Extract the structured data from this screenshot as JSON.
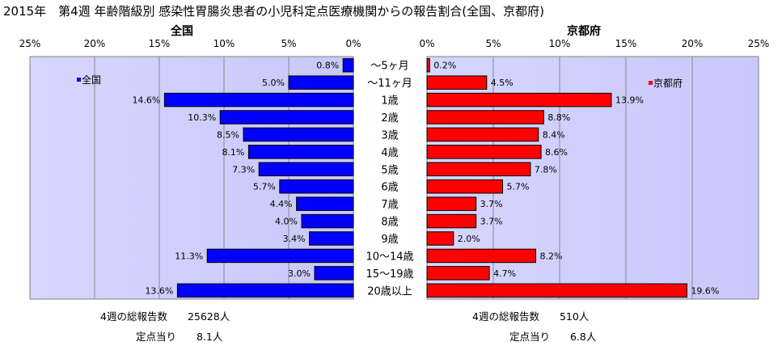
{
  "title": "2015年　第4週 年齢階級別 感染性胃腸炎患者の小児科定点医療機関からの報告割合(全国、京都府)",
  "categories": [
    "～5ヶ月",
    "～11ヶ月",
    "1歳",
    "2歳",
    "3歳",
    "4歳",
    "5歳",
    "6歳",
    "7歳",
    "8歳",
    "9歳",
    "10～14歳",
    "15～19歳",
    "20歳以上"
  ],
  "chart_data": [
    {
      "type": "bar",
      "title": "全国",
      "orientation": "horizontal-reversed",
      "xlim": [
        0,
        25
      ],
      "ticks": [
        "25%",
        "20%",
        "15%",
        "10%",
        "5%",
        "0%"
      ],
      "legend": "全国",
      "legend_position": "top-left",
      "color": "#0000ff",
      "series": [
        {
          "name": "全国",
          "values": [
            0.8,
            5.0,
            14.6,
            10.3,
            8.5,
            8.1,
            7.3,
            5.7,
            4.4,
            4.0,
            3.4,
            11.3,
            3.0,
            13.6
          ]
        }
      ],
      "labels": [
        "0.8%",
        "5.0%",
        "14.6%",
        "10.3%",
        "8.5%",
        "8.1%",
        "7.3%",
        "5.7%",
        "4.4%",
        "4.0%",
        "3.4%",
        "11.3%",
        "3.0%",
        "13.6%"
      ]
    },
    {
      "type": "bar",
      "title": "京都府",
      "orientation": "horizontal",
      "xlim": [
        0,
        25
      ],
      "ticks": [
        "0%",
        "5%",
        "10%",
        "15%",
        "20%",
        "25%"
      ],
      "legend": "京都府",
      "legend_position": "top-right",
      "color": "#ff0000",
      "series": [
        {
          "name": "京都府",
          "values": [
            0.2,
            4.5,
            13.9,
            8.8,
            8.4,
            8.6,
            7.8,
            5.7,
            3.7,
            3.7,
            2.0,
            8.2,
            4.7,
            19.6
          ]
        }
      ],
      "labels": [
        "0.2%",
        "4.5%",
        "13.9%",
        "8.8%",
        "8.4%",
        "8.6%",
        "7.8%",
        "5.7%",
        "3.7%",
        "3.7%",
        "2.0%",
        "8.2%",
        "4.7%",
        "19.6%"
      ]
    }
  ],
  "footer": {
    "national_total": "4週の総報告数　　25628人",
    "national_per_site": "定点当り　　8.1人",
    "kyoto_total": "4週の総報告数　　510人",
    "kyoto_per_site": "定点当り　　6.8人"
  },
  "colors": {
    "plot_background": "#ccccff",
    "national_bar": "#0000ff",
    "kyoto_bar": "#ff0000",
    "border": "#808080"
  }
}
